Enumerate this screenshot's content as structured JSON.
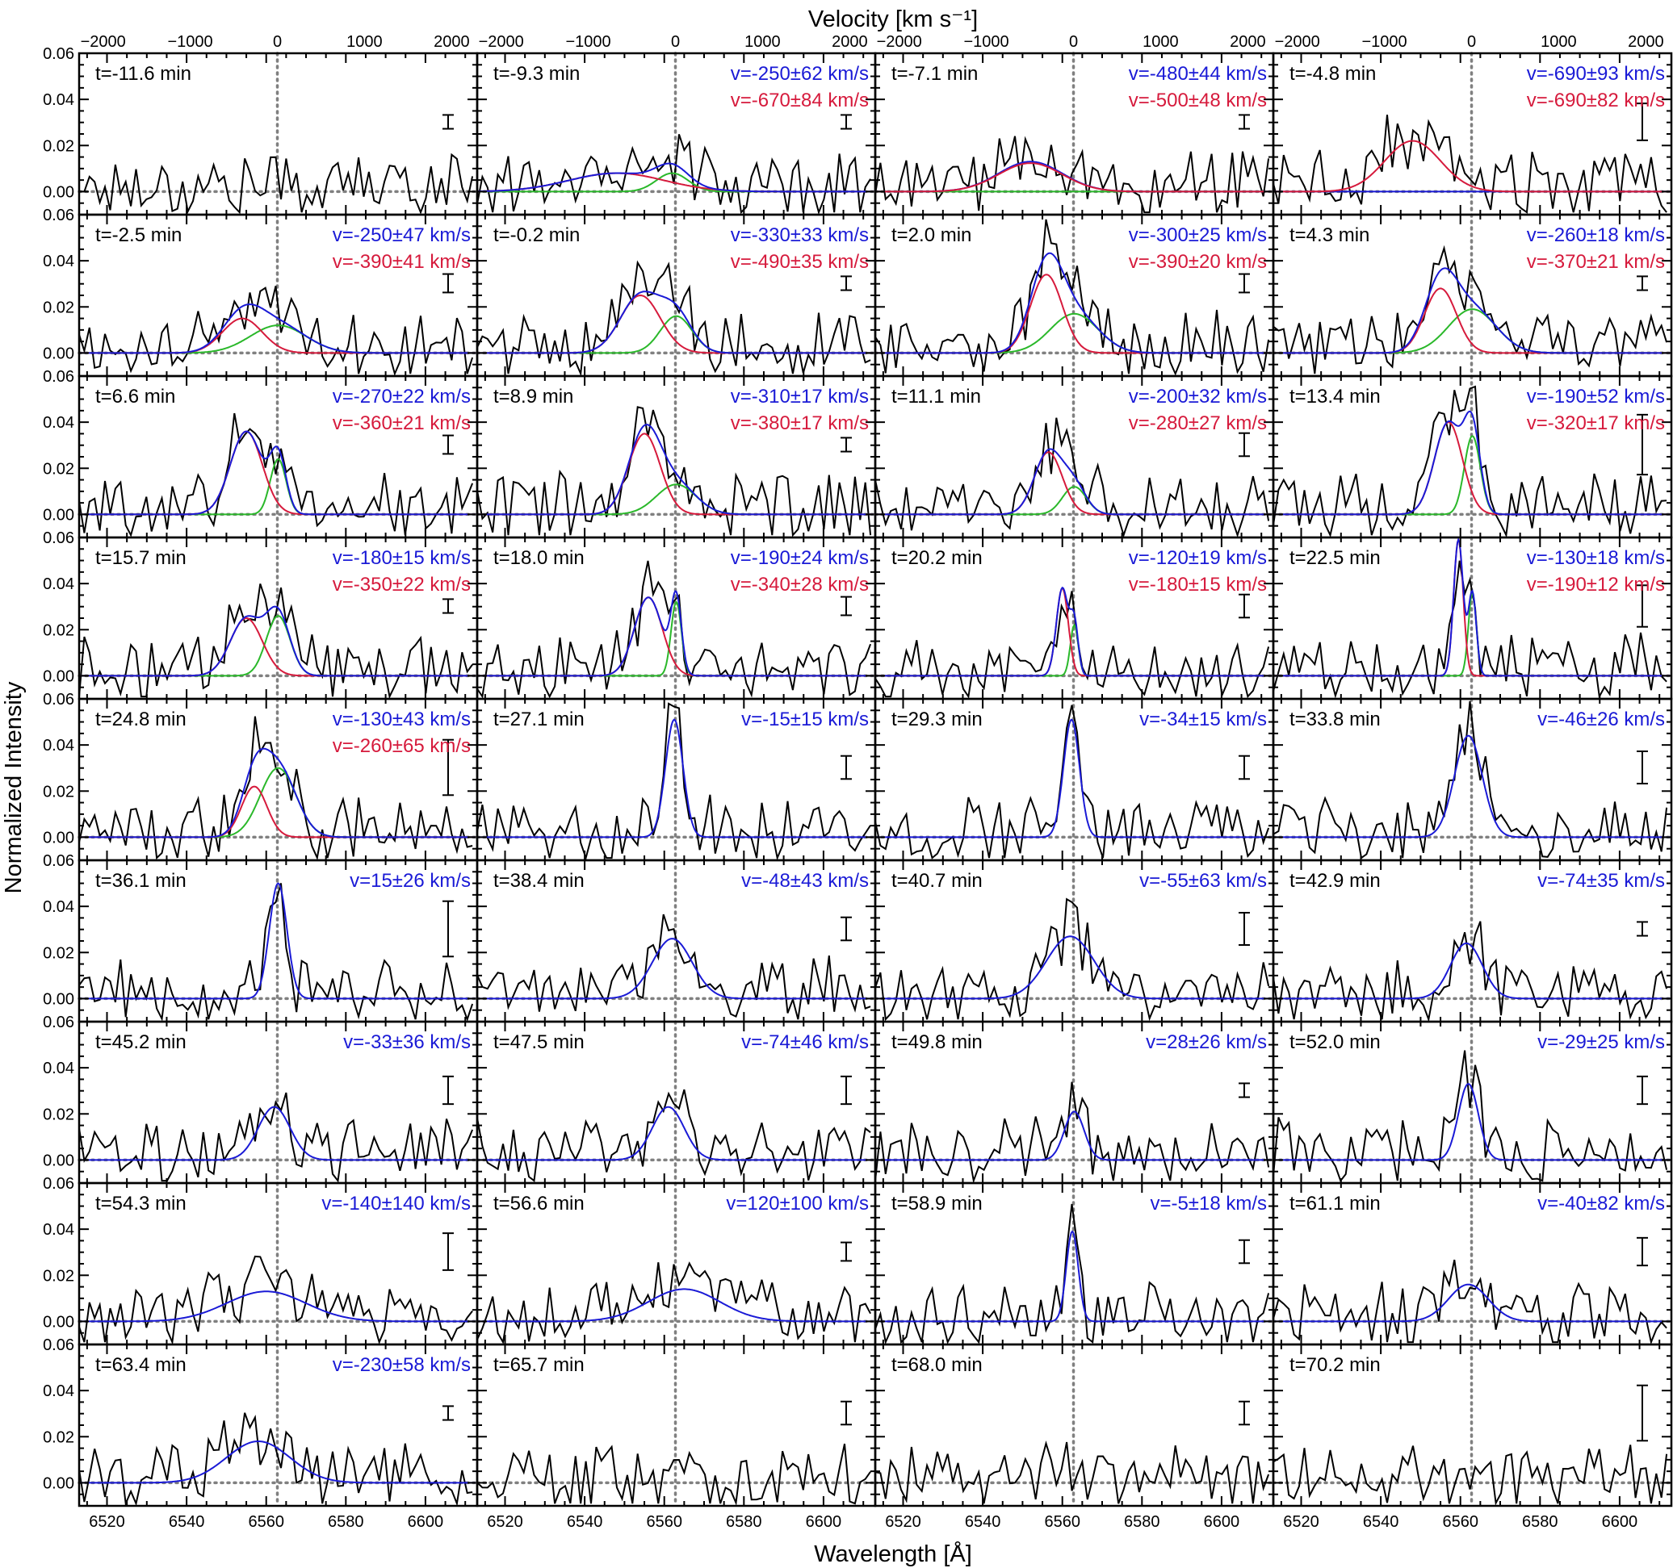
{
  "chart_data": {
    "type": "line",
    "top_axis_label": "Velocity [km s⁻¹]",
    "xlabel": "Wavelength [Å]",
    "ylabel": "Normalized Intensity",
    "xlim": [
      6513,
      6613
    ],
    "ylim": [
      -0.01,
      0.06
    ],
    "x_ticks": [
      6520,
      6540,
      6560,
      6580,
      6600
    ],
    "x_tick_labels": [
      "6520",
      "6540",
      "6560",
      "6580",
      "6600"
    ],
    "y_ticks": [
      0.0,
      0.02,
      0.04,
      0.06
    ],
    "y_tick_labels": [
      "0.00",
      "0.02",
      "0.04",
      "0.06"
    ],
    "velocity_ticks": [
      -2000,
      -1000,
      0,
      1000,
      2000
    ],
    "velocity_tick_labels": [
      "−2000",
      "−1000",
      "0",
      "1000",
      "2000"
    ],
    "rest_wavelength": 6562.8,
    "colors": {
      "data": "#000000",
      "total_fit": "#1a1ad6",
      "blue_component": "#d61a3c",
      "rest_component": "#2ab82a",
      "reference": "#808080"
    },
    "panels": [
      {
        "t": "t=-11.6 min",
        "v1": "",
        "v2": "",
        "err": 0.003,
        "g": []
      },
      {
        "t": "t=-9.3 min",
        "v1": "v=-250±62 km/s",
        "v2": "v=-670±84 km/s",
        "err": 0.003,
        "g": [
          [
            0.008,
            6548,
            12
          ],
          [
            0.008,
            6562,
            4
          ]
        ]
      },
      {
        "t": "t=-7.1 min",
        "v1": "v=-480±44 km/s",
        "v2": "v=-500±48 km/s",
        "err": 0.003,
        "g": [
          [
            0.013,
            6552,
            8
          ]
        ]
      },
      {
        "t": "t=-4.8 min",
        "v1": "v=-690±93 km/s",
        "v2": "v=-690±82 km/s",
        "err": 0.008,
        "g": [
          [
            0.022,
            6548,
            7
          ]
        ]
      },
      {
        "t": "t=-2.5 min",
        "v1": "v=-250±47 km/s",
        "v2": "v=-390±41 km/s",
        "err": 0.004,
        "g": [
          [
            0.015,
            6554,
            5
          ],
          [
            0.012,
            6563,
            7
          ]
        ]
      },
      {
        "t": "t=-0.2 min",
        "v1": "v=-330±33 km/s",
        "v2": "v=-490±35 km/s",
        "err": 0.003,
        "g": [
          [
            0.025,
            6554,
            5
          ],
          [
            0.016,
            6563,
            4
          ]
        ]
      },
      {
        "t": "t=2.0 min",
        "v1": "v=-300±25 km/s",
        "v2": "v=-390±20 km/s",
        "err": 0.004,
        "g": [
          [
            0.034,
            6556,
            4
          ],
          [
            0.017,
            6563,
            6
          ]
        ]
      },
      {
        "t": "t=4.3 min",
        "v1": "v=-260±18 km/s",
        "v2": "v=-370±21 km/s",
        "err": 0.003,
        "g": [
          [
            0.028,
            6555,
            4
          ],
          [
            0.019,
            6563,
            6
          ]
        ]
      },
      {
        "t": "t=6.6 min",
        "v1": "v=-270±22 km/s",
        "v2": "v=-360±21 km/s",
        "err": 0.004,
        "g": [
          [
            0.036,
            6555,
            4
          ],
          [
            0.024,
            6563,
            2
          ]
        ]
      },
      {
        "t": "t=8.9 min",
        "v1": "v=-310±17 km/s",
        "v2": "v=-380±17 km/s",
        "err": 0.003,
        "g": [
          [
            0.035,
            6555,
            4
          ],
          [
            0.013,
            6563,
            5
          ]
        ]
      },
      {
        "t": "t=11.1 min",
        "v1": "v=-200±32 km/s",
        "v2": "v=-280±27 km/s",
        "err": 0.005,
        "g": [
          [
            0.027,
            6556.5,
            3.5
          ],
          [
            0.012,
            6563,
            3
          ]
        ]
      },
      {
        "t": "t=13.4 min",
        "v1": "v=-190±52 km/s",
        "v2": "v=-320±17 km/s",
        "err": 0.013,
        "g": [
          [
            0.04,
            6557,
            3.5
          ],
          [
            0.034,
            6563,
            2
          ]
        ]
      },
      {
        "t": "t=15.7 min",
        "v1": "v=-180±15 km/s",
        "v2": "v=-350±22 km/s",
        "err": 0.003,
        "g": [
          [
            0.025,
            6555,
            4
          ],
          [
            0.026,
            6563,
            3
          ]
        ]
      },
      {
        "t": "t=18.0 min",
        "v1": "v=-190±24 km/s",
        "v2": "v=-340±28 km/s",
        "err": 0.004,
        "g": [
          [
            0.034,
            6556,
            3.5
          ],
          [
            0.032,
            6563,
            1.3
          ]
        ]
      },
      {
        "t": "t=20.2 min",
        "v1": "v=-120±19 km/s",
        "v2": "v=-180±15 km/s",
        "err": 0.005,
        "g": [
          [
            0.038,
            6560,
            1.5
          ],
          [
            0.022,
            6563,
            1
          ]
        ]
      },
      {
        "t": "t=22.5 min",
        "v1": "v=-130±18 km/s",
        "v2": "v=-190±12 km/s",
        "err": 0.009,
        "g": [
          [
            0.059,
            6559.5,
            1.2
          ],
          [
            0.036,
            6563,
            1
          ]
        ]
      },
      {
        "t": "t=24.8 min",
        "v1": "v=-130±43 km/s",
        "v2": "v=-260±65 km/s",
        "err": 0.012,
        "g": [
          [
            0.022,
            6557,
            3.2
          ],
          [
            0.03,
            6563,
            4.5
          ]
        ]
      },
      {
        "t": "t=27.1 min",
        "v1": "v=-15±15 km/s",
        "v2": "",
        "err": 0.005,
        "g": [
          [
            0.051,
            6562.5,
            2.2
          ]
        ]
      },
      {
        "t": "t=29.3 min",
        "v1": "v=-34±15 km/s",
        "v2": "",
        "err": 0.005,
        "g": [
          [
            0.051,
            6562.3,
            2
          ]
        ]
      },
      {
        "t": "t=33.8 min",
        "v1": "v=-46±26 km/s",
        "v2": "",
        "err": 0.007,
        "g": [
          [
            0.044,
            6562,
            3.5
          ]
        ]
      },
      {
        "t": "t=36.1 min",
        "v1": "v=15±26 km/s",
        "v2": "",
        "err": 0.012,
        "g": [
          [
            0.05,
            6563,
            2.2
          ]
        ]
      },
      {
        "t": "t=38.4 min",
        "v1": "v=-48±43 km/s",
        "v2": "",
        "err": 0.005,
        "g": [
          [
            0.026,
            6562,
            5
          ]
        ]
      },
      {
        "t": "t=40.7 min",
        "v1": "v=-55±63 km/s",
        "v2": "",
        "err": 0.007,
        "g": [
          [
            0.027,
            6562,
            6
          ]
        ]
      },
      {
        "t": "t=42.9 min",
        "v1": "v=-74±35 km/s",
        "v2": "",
        "err": 0.003,
        "g": [
          [
            0.024,
            6561.5,
            4
          ]
        ]
      },
      {
        "t": "t=45.2 min",
        "v1": "v=-33±36 km/s",
        "v2": "",
        "err": 0.006,
        "g": [
          [
            0.023,
            6562,
            4
          ]
        ]
      },
      {
        "t": "t=47.5 min",
        "v1": "v=-74±46 km/s",
        "v2": "",
        "err": 0.006,
        "g": [
          [
            0.023,
            6561,
            4
          ]
        ]
      },
      {
        "t": "t=49.8 min",
        "v1": "v=28±26 km/s",
        "v2": "",
        "err": 0.003,
        "g": [
          [
            0.021,
            6563,
            2.5
          ]
        ]
      },
      {
        "t": "t=52.0 min",
        "v1": "v=-29±25 km/s",
        "v2": "",
        "err": 0.006,
        "g": [
          [
            0.033,
            6562,
            2.5
          ]
        ]
      },
      {
        "t": "t=54.3 min",
        "v1": "v=-140±140 km/s",
        "v2": "",
        "err": 0.008,
        "g": [
          [
            0.013,
            6560,
            10
          ]
        ]
      },
      {
        "t": "t=56.6 min",
        "v1": "v=120±100 km/s",
        "v2": "",
        "err": 0.004,
        "g": [
          [
            0.014,
            6565,
            9
          ]
        ]
      },
      {
        "t": "t=58.9 min",
        "v1": "v=-5±18 km/s",
        "v2": "",
        "err": 0.005,
        "g": [
          [
            0.039,
            6562.5,
            1.5
          ]
        ]
      },
      {
        "t": "t=61.1 min",
        "v1": "v=-40±82 km/s",
        "v2": "",
        "err": 0.006,
        "g": [
          [
            0.016,
            6562,
            5
          ]
        ]
      },
      {
        "t": "t=63.4 min",
        "v1": "v=-230±58 km/s",
        "v2": "",
        "err": 0.003,
        "g": [
          [
            0.018,
            6558,
            8
          ]
        ]
      },
      {
        "t": "t=65.7 min",
        "v1": "",
        "v2": "",
        "err": 0.005,
        "g": []
      },
      {
        "t": "t=68.0 min",
        "v1": "",
        "v2": "",
        "err": 0.005,
        "g": []
      },
      {
        "t": "t=70.2 min",
        "v1": "",
        "v2": "",
        "err": 0.012,
        "g": []
      }
    ]
  }
}
